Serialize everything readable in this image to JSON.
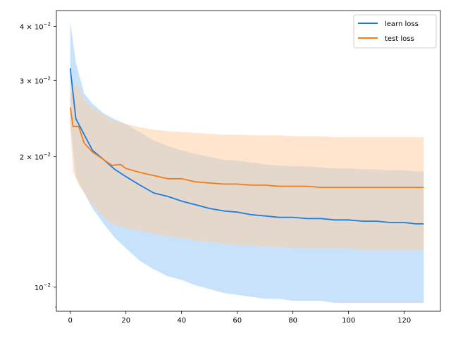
{
  "chart_data": {
    "type": "line",
    "title": "",
    "xlabel": "",
    "ylabel": "",
    "xlim": [
      -5,
      133
    ],
    "ylim": [
      0.0088,
      0.0435
    ],
    "yscale": "log",
    "grid": false,
    "legend_position": "top-right",
    "x_ticks": [
      0,
      20,
      40,
      60,
      80,
      100,
      120
    ],
    "x_tick_labels": [
      "0",
      "20",
      "40",
      "60",
      "80",
      "100",
      "120"
    ],
    "y_ticks": [
      {
        "value": 0.01,
        "mantissa": "10",
        "exp": "−2"
      },
      {
        "value": 0.02,
        "mantissa": "2 × 10",
        "exp": "−2"
      },
      {
        "value": 0.03,
        "mantissa": "3 × 10",
        "exp": "−2"
      },
      {
        "value": 0.04,
        "mantissa": "4 × 10",
        "exp": "−2"
      }
    ],
    "series": [
      {
        "name": "learn loss",
        "color": "#1f77b4",
        "line_color": "#1a7ee0",
        "band_color": "#9ccaf8",
        "x": [
          0,
          2,
          5,
          8,
          12,
          16,
          20,
          25,
          30,
          35,
          40,
          45,
          50,
          55,
          60,
          65,
          70,
          75,
          80,
          85,
          90,
          95,
          100,
          105,
          110,
          115,
          120,
          124,
          127
        ],
        "y": [
          0.032,
          0.0245,
          0.0225,
          0.0207,
          0.0197,
          0.0187,
          0.018,
          0.0172,
          0.0165,
          0.0162,
          0.0158,
          0.0155,
          0.0152,
          0.015,
          0.0149,
          0.0147,
          0.0146,
          0.0145,
          0.0145,
          0.0144,
          0.0144,
          0.0143,
          0.0143,
          0.0142,
          0.0142,
          0.0141,
          0.0141,
          0.014,
          0.014
        ],
        "upper": [
          0.041,
          0.033,
          0.028,
          0.0265,
          0.0252,
          0.0244,
          0.0238,
          0.0228,
          0.0218,
          0.0212,
          0.0207,
          0.0203,
          0.02,
          0.0197,
          0.0196,
          0.0194,
          0.0192,
          0.0191,
          0.019,
          0.019,
          0.0189,
          0.0188,
          0.0188,
          0.0187,
          0.0187,
          0.0186,
          0.0186,
          0.0185,
          0.0185
        ],
        "lower": [
          0.024,
          0.018,
          0.0165,
          0.0152,
          0.014,
          0.013,
          0.0123,
          0.0115,
          0.011,
          0.0106,
          0.0104,
          0.0101,
          0.0099,
          0.0097,
          0.0096,
          0.0095,
          0.0094,
          0.0094,
          0.0093,
          0.0093,
          0.0093,
          0.0092,
          0.0092,
          0.0092,
          0.0092,
          0.0092,
          0.0092,
          0.0092,
          0.0092
        ]
      },
      {
        "name": "test loss",
        "color": "#ff7f0e",
        "line_color": "#f47d1a",
        "band_color": "#ffcc9c",
        "x": [
          0,
          1,
          3,
          5,
          8,
          12,
          15,
          18,
          20,
          25,
          30,
          35,
          40,
          45,
          50,
          55,
          60,
          65,
          70,
          75,
          80,
          85,
          90,
          95,
          100,
          105,
          110,
          115,
          120,
          124,
          127
        ],
        "y": [
          0.026,
          0.0235,
          0.0235,
          0.0215,
          0.0205,
          0.0197,
          0.0191,
          0.0192,
          0.0188,
          0.0184,
          0.0181,
          0.0178,
          0.0178,
          0.0175,
          0.0174,
          0.0173,
          0.0173,
          0.0172,
          0.0172,
          0.0171,
          0.0171,
          0.0171,
          0.017,
          0.017,
          0.017,
          0.017,
          0.017,
          0.017,
          0.017,
          0.017,
          0.017
        ],
        "upper": [
          0.0285,
          0.0295,
          0.029,
          0.027,
          0.026,
          0.025,
          0.0243,
          0.024,
          0.0238,
          0.0234,
          0.0231,
          0.0229,
          0.0228,
          0.0227,
          0.0226,
          0.0225,
          0.0225,
          0.0224,
          0.0224,
          0.0224,
          0.0223,
          0.0223,
          0.0223,
          0.0222,
          0.0222,
          0.0222,
          0.0222,
          0.0222,
          0.0222,
          0.0222,
          0.0222
        ],
        "lower": [
          0.023,
          0.0185,
          0.0172,
          0.0165,
          0.0155,
          0.0145,
          0.014,
          0.0138,
          0.0137,
          0.0135,
          0.0133,
          0.0131,
          0.013,
          0.0128,
          0.0127,
          0.0126,
          0.0125,
          0.0125,
          0.0124,
          0.0124,
          0.0123,
          0.0123,
          0.0123,
          0.0123,
          0.0123,
          0.0122,
          0.0122,
          0.0122,
          0.0122,
          0.0122,
          0.0122
        ]
      }
    ]
  }
}
